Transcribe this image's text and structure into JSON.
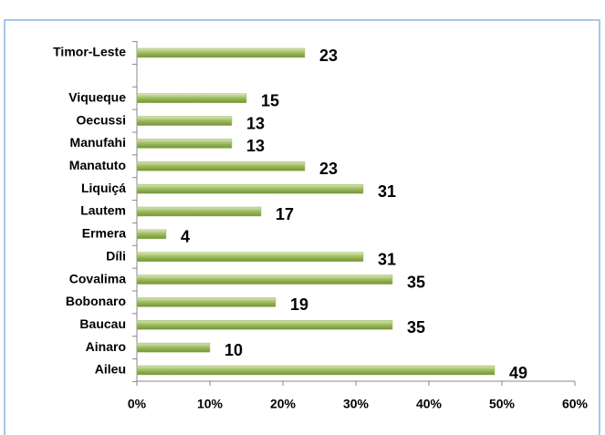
{
  "chart_data": {
    "type": "bar",
    "orientation": "horizontal",
    "categories": [
      "Timor-Leste",
      null,
      "Viqueque",
      "Oecussi",
      "Manufahi",
      "Manatuto",
      "Liquiçá",
      "Lautem",
      "Ermera",
      "Díli",
      "Covalima",
      "Bobonaro",
      "Baucau",
      "Ainaro",
      "Aileu"
    ],
    "values": [
      23,
      null,
      15,
      13,
      13,
      23,
      31,
      17,
      4,
      31,
      35,
      19,
      35,
      10,
      49
    ],
    "color": "#9bbb59",
    "xlim": [
      0,
      60
    ],
    "xticks": [
      {
        "value": 0,
        "label": "0%"
      },
      {
        "value": 10,
        "label": "10%"
      },
      {
        "value": 20,
        "label": "20%"
      },
      {
        "value": 30,
        "label": "30%"
      },
      {
        "value": 40,
        "label": "40%"
      },
      {
        "value": 50,
        "label": "50%"
      },
      {
        "value": 60,
        "label": "60%"
      }
    ],
    "grid": false
  }
}
